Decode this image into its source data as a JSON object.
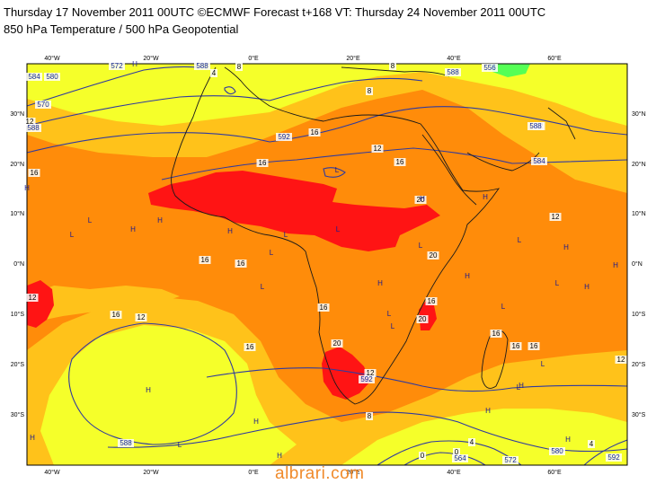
{
  "title_line1": "Thursday 17 November 2011 00UTC ©ECMWF Forecast t+168 VT: Thursday 24 November 2011 00UTC",
  "title_line2": "850 hPa Temperature / 500 hPa Geopotential",
  "watermark": "albrari.com",
  "lon_labels": [
    "40°W",
    "20°W",
    "0°E",
    "20°E",
    "40°E",
    "60°E"
  ],
  "lat_labels": [
    "30°N",
    "20°N",
    "10°N",
    "0°N",
    "10°S",
    "20°S",
    "30°S"
  ],
  "temperature_labels": [
    "16",
    "16",
    "12",
    "16",
    "12",
    "16",
    "20",
    "20",
    "16",
    "16",
    "16",
    "12",
    "12",
    "16",
    "20",
    "16",
    "20",
    "16",
    "16",
    "16",
    "12",
    "12",
    "8",
    "16",
    "12",
    "4",
    "4",
    "0",
    "0",
    "4",
    "8",
    "8",
    "8",
    "12"
  ],
  "geopotential_labels": [
    "580",
    "570",
    "588",
    "592",
    "584",
    "572",
    "588",
    "588",
    "592",
    "588",
    "580",
    "572",
    "564",
    "556",
    "588",
    "592",
    "584"
  ],
  "pressure_centres": [
    "H",
    "L",
    "H",
    "L",
    "L",
    "H",
    "H",
    "L",
    "H",
    "L",
    "L",
    "H",
    "H",
    "L",
    "H",
    "L",
    "L",
    "H",
    "H",
    "L",
    "L",
    "L",
    "H",
    "L",
    "H",
    "H",
    "L",
    "H",
    "H",
    "L",
    "H",
    "H",
    "H",
    "L",
    "H"
  ],
  "colors": {
    "yellow": "#f5ff2a",
    "light_orange": "#ffc21a",
    "orange": "#ff8c0a",
    "dark_orange": "#ff6e00",
    "red": "#ff1414",
    "green": "#55ff55",
    "contour": "#303a9e",
    "coast": "#1a1a1a"
  }
}
